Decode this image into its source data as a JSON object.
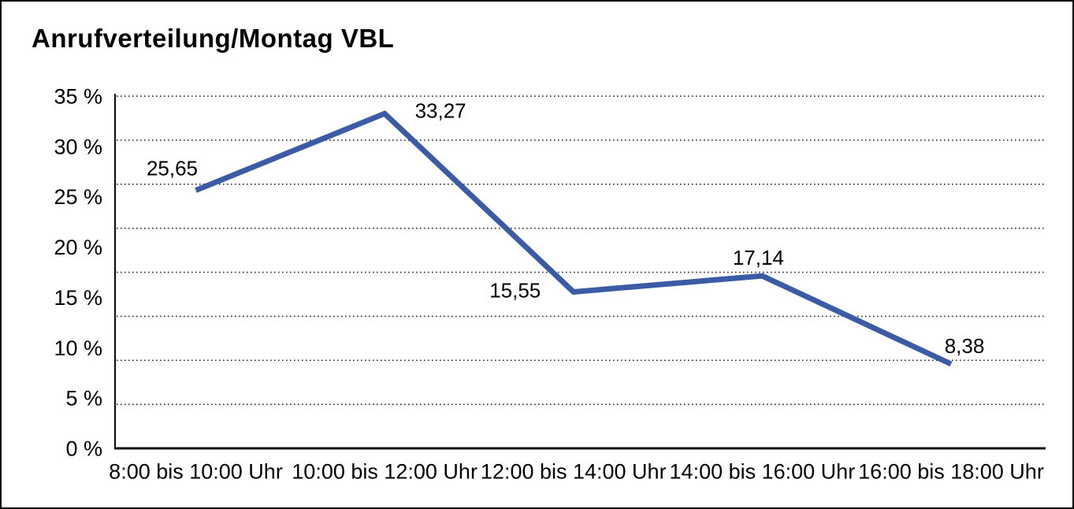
{
  "title": "Anrufverteilung/Montag VBL",
  "colors": {
    "line": "#3B5BA5",
    "text": "#000000",
    "grid": "#2b2b2b",
    "axis": "#111111",
    "background": "#ffffff",
    "border": "#000000"
  },
  "chart_data": {
    "type": "line",
    "title": "Anrufverteilung/Montag VBL",
    "categories": [
      "8:00 bis 10:00 Uhr",
      "10:00 bis 12:00 Uhr",
      "12:00 bis 14:00 Uhr",
      "14:00 bis 16:00 Uhr",
      "16:00 bis 18:00 Uhr"
    ],
    "series": [
      {
        "name": "Anrufverteilung Montag VBL",
        "values": [
          25.65,
          33.27,
          15.55,
          17.14,
          8.38
        ]
      }
    ],
    "data_labels": [
      "25,65",
      "33,27",
      "15,55",
      "17,14",
      "8,38"
    ],
    "xlabel": "",
    "ylabel": "",
    "ylim": [
      0,
      35
    ],
    "ytick_step": 5,
    "ytick_labels": [
      "0 %",
      "5 %",
      "10 %",
      "15 %",
      "20 %",
      "25 %",
      "30 %",
      "35 %"
    ],
    "grid_divisions": 8,
    "grid_style": "dotted-horizontal",
    "legend_position": "none"
  }
}
